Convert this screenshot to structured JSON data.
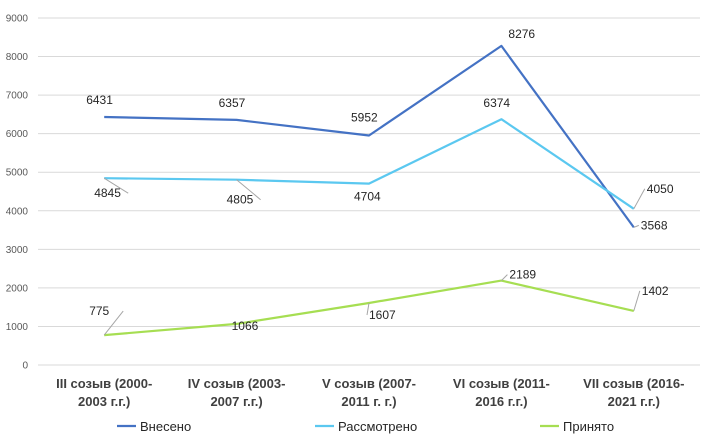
{
  "chart_data": {
    "type": "line",
    "title": "",
    "xlabel": "",
    "ylabel": "",
    "categories": [
      [
        "III созыв (2000-",
        "2003 г.г.)"
      ],
      [
        "IV созыв (2003-",
        "2007 г.г.)"
      ],
      [
        "V созыв  (2007-",
        "2011 г. г.)"
      ],
      [
        "VI созыв (2011-",
        "2016 г.г.)"
      ],
      [
        "VII созыв (2016-",
        "2021 г.г.)"
      ]
    ],
    "ylim": [
      0,
      9000
    ],
    "yticks": [
      0,
      1000,
      2000,
      3000,
      4000,
      5000,
      6000,
      7000,
      8000,
      9000
    ],
    "grid": true,
    "legend_position": "bottom",
    "series": [
      {
        "name": "Внесено",
        "color": "#4472c4",
        "values": [
          6431,
          6357,
          5952,
          8276,
          3568
        ]
      },
      {
        "name": "Рассмотрено",
        "color": "#5bc8f0",
        "values": [
          4845,
          4805,
          4704,
          6374,
          4050
        ]
      },
      {
        "name": "Принято",
        "color": "#a6de52",
        "values": [
          775,
          1066,
          1607,
          2189,
          1402
        ]
      }
    ]
  }
}
